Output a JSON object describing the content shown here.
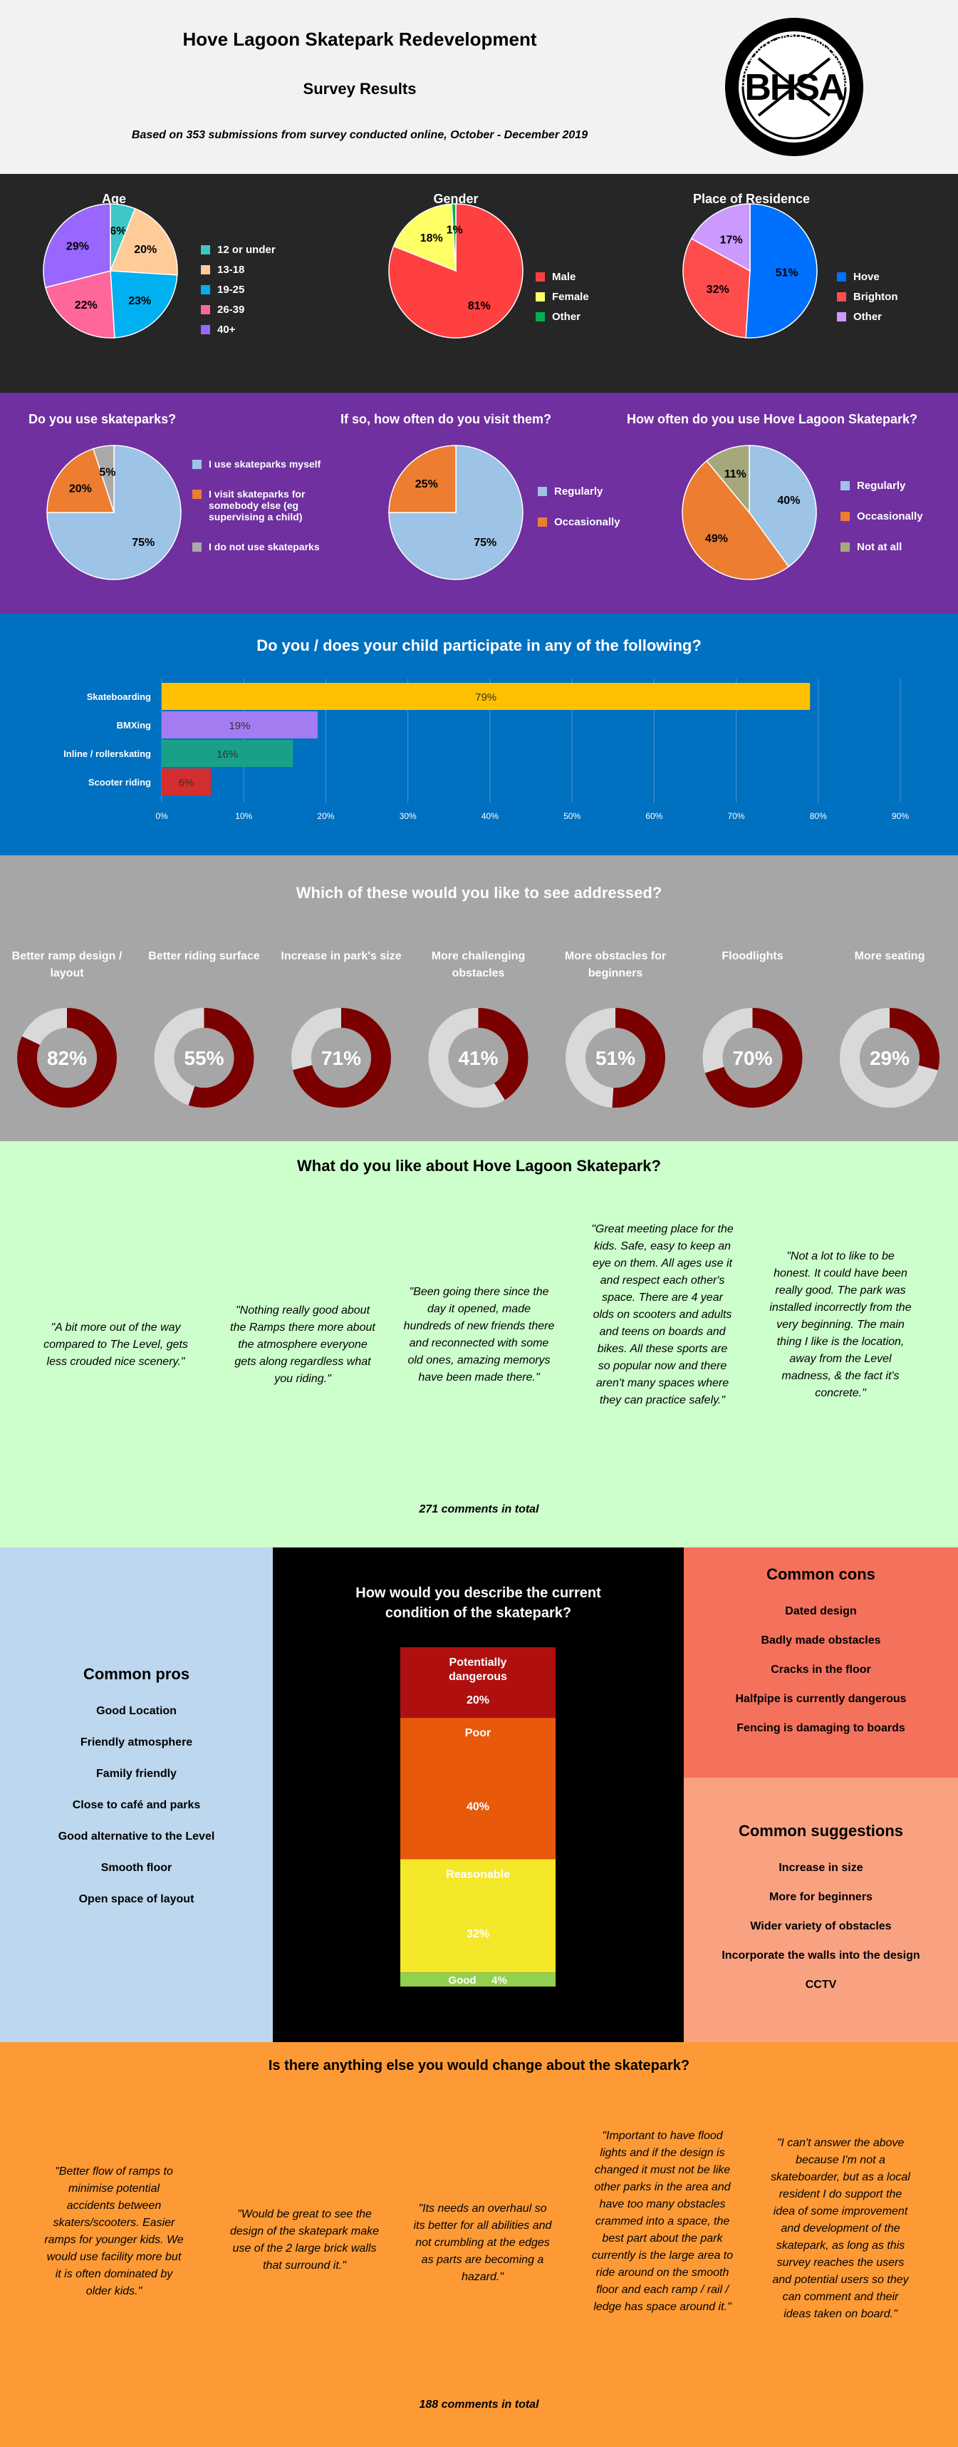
{
  "header": {
    "title": "Hove Lagoon Skatepark Redevelopment",
    "subtitle": "Survey Results",
    "note": "Based on 353 submissions from survey conducted online, October - December 2019",
    "logo_text": "BRIGHTON & HOVE SKATEPARKS ASSOCIATION",
    "logo_letters": "BHSA",
    "logo_url": "WWW.BHSA.ORG"
  },
  "colors": {
    "demo_bg": "#262626",
    "use_bg": "#7030a0",
    "part_bg": "#0070c0",
    "addr_bg": "#a6a6a6",
    "like_bg": "#ccffcc",
    "cond_bg": "#000000",
    "pros_bg": "#bdd7ee",
    "cons_bg": "#f4715c",
    "sugg_bg": "#f9a282",
    "change_bg": "#fd9a35",
    "donut_fill": "#7b0000",
    "donut_track": "#d9d9d9"
  },
  "chart_data": [
    {
      "type": "pie",
      "title": "Age",
      "categories": [
        "12 or under",
        "13-18",
        "19-25",
        "26-39",
        "40+"
      ],
      "values": [
        6,
        20,
        23,
        22,
        29
      ],
      "labels": [
        "6%",
        "20%",
        "23%",
        "22%",
        "29%"
      ],
      "colors": [
        "#3ec6c8",
        "#ffcc99",
        "#00b0f0",
        "#ff6699",
        "#9966ff"
      ]
    },
    {
      "type": "pie",
      "title": "Gender",
      "categories": [
        "Male",
        "Female",
        "Other"
      ],
      "values": [
        81,
        18,
        1
      ],
      "labels": [
        "81%",
        "18%",
        "1%"
      ],
      "colors": [
        "#ff4040",
        "#ffff66",
        "#00b050"
      ]
    },
    {
      "type": "pie",
      "title": "Place of Residence",
      "categories": [
        "Hove",
        "Brighton",
        "Other"
      ],
      "values": [
        51,
        32,
        17
      ],
      "labels": [
        "51%",
        "32%",
        "17%"
      ],
      "colors": [
        "#0070ff",
        "#ff4d4d",
        "#cc99ff"
      ]
    },
    {
      "type": "pie",
      "title": "Do you use skateparks?",
      "categories": [
        "I use skateparks myself",
        "I visit skateparks for somebody else (eg supervising a child)",
        "I do not use skateparks"
      ],
      "values": [
        75,
        20,
        5
      ],
      "labels": [
        "75%",
        "20%",
        "5%"
      ],
      "colors": [
        "#9dc3e6",
        "#ed7d31",
        "#a9a9a9"
      ]
    },
    {
      "type": "pie",
      "title": "If so, how often do you visit them?",
      "categories": [
        "Regularly",
        "Occasionally"
      ],
      "values": [
        75,
        25
      ],
      "labels": [
        "75%",
        "25%"
      ],
      "colors": [
        "#9dc3e6",
        "#ed7d31"
      ]
    },
    {
      "type": "pie",
      "title": "How often do you use Hove Lagoon Skatepark?",
      "categories": [
        "Regularly",
        "Occasionally",
        "Not at all"
      ],
      "values": [
        40,
        49,
        11
      ],
      "labels": [
        "40%",
        "49%",
        "11%"
      ],
      "colors": [
        "#9dc3e6",
        "#ed7d31",
        "#a5a87a"
      ]
    },
    {
      "type": "bar",
      "title": "Do you / does your child participate in any of the following?",
      "categories": [
        "Skateboarding",
        "BMXing",
        "Inline / rollerskating",
        "Scooter riding"
      ],
      "values": [
        79,
        19,
        16,
        6
      ],
      "labels": [
        "79%",
        "19%",
        "16%",
        "6%"
      ],
      "colors": [
        "#ffc000",
        "#a37cf2",
        "#19a089",
        "#d42e2e"
      ],
      "xlim": [
        0,
        90
      ],
      "ticks": [
        "0%",
        "10%",
        "20%",
        "30%",
        "40%",
        "50%",
        "60%",
        "70%",
        "80%",
        "90%"
      ],
      "grid": true
    },
    {
      "type": "pie",
      "title": "Which of these would you like to see addressed?",
      "categories": [
        "Better ramp design / layout",
        "Better riding surface",
        "Increase in park's size",
        "More challenging obstacles",
        "More obstacles for beginners",
        "Floodlights",
        "More seating"
      ],
      "values": [
        82,
        55,
        71,
        41,
        51,
        70,
        29
      ],
      "labels": [
        "82%",
        "55%",
        "71%",
        "41%",
        "51%",
        "70%",
        "29%"
      ]
    },
    {
      "type": "bar",
      "title": "How would you describe the current condition of the skatepark?",
      "categories": [
        "Potentially dangerous",
        "Poor",
        "Reasonable",
        "Good"
      ],
      "values": [
        20,
        40,
        32,
        4
      ],
      "labels": [
        "20%",
        "40%",
        "32%",
        "4%"
      ],
      "colors": [
        "#b00f0f",
        "#e8590c",
        "#f5e82a",
        "#92d050"
      ]
    }
  ],
  "like": {
    "title": "What do you like about Hove Lagoon Skatepark?",
    "quotes": [
      "\"A bit more out of the way compared to The Level, gets less crouded nice scenery.\"",
      "\"Nothing really good about the Ramps there more about the atmosphere everyone gets along regardless what you riding.\"",
      "\"Been going there since the day it opened, made hundreds of new friends there and reconnected with some old ones, amazing memorys have been made there.\"",
      "\"Great meeting place for the kids. Safe, easy to keep an eye on them. All ages use it and respect each other's space. There are 4 year olds on scooters  and adults and teens on boards and bikes. All these sports are so popular now and there aren't many spaces where they can practice safely.\"",
      "\"Not a lot to like to be honest. It could have been really good. The park was installed incorrectly from the very beginning. The main thing I like is the location, away from the Level madness, & the fact it's concrete.\""
    ],
    "total": "271 comments in total"
  },
  "pros": {
    "title": "Common pros",
    "items": [
      "Good Location",
      "Friendly atmosphere",
      "Family friendly",
      "Close to café and parks",
      "Good alternative to the Level",
      "Smooth floor",
      "Open space of layout"
    ]
  },
  "cons": {
    "title": "Common cons",
    "items": [
      "Dated design",
      "Badly made obstacles",
      "Cracks in the floor",
      "Halfpipe is currently dangerous",
      "Fencing is damaging to boards"
    ]
  },
  "suggestions": {
    "title": "Common suggestions",
    "items": [
      "Increase in size",
      "More for beginners",
      "Wider variety of obstacles",
      "Incorporate the walls into the design",
      "CCTV"
    ]
  },
  "change": {
    "title": "Is there anything else you would change about the skatepark?",
    "quotes": [
      "\"Better flow of ramps to minimise potential accidents between skaters/scooters. Easier ramps for younger kids. We would use facility more but it is often dominated by older kids.\"",
      "\"Would be great to see the design of the skatepark make use of the 2 large brick walls that surround it.\"",
      "\"Its needs an overhaul so its better for all abilities and not crumbling at the edges as parts are becoming a hazard.\"",
      "\"Important to have flood lights and if the design is changed it must not be like other parks in the area and have too many obstacles crammed into a space, the best part about the park currently is the large area to ride around on the smooth floor and each ramp / rail / ledge has space around it.\"",
      "\"I can't answer the above because I'm not a skateboarder, but as a local resident  I do support the idea of some improvement and development of the skatepark, as long as this survey reaches the users and potential users so they can comment and their ideas taken on board.\""
    ],
    "total": "188 comments in total"
  }
}
